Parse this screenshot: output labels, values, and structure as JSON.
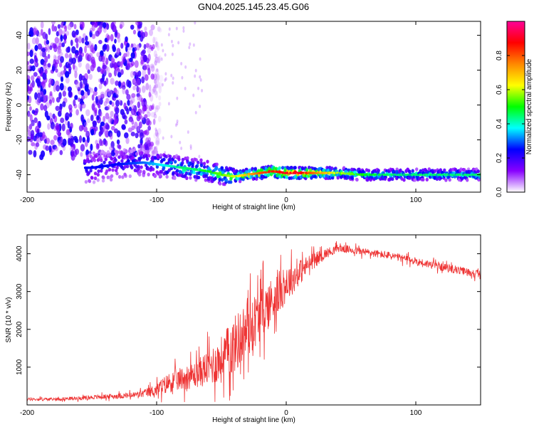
{
  "title": "GN04.2025.145.23.45.G06",
  "colors": {
    "snr_line": "#ee3333",
    "ridge_low": "#5500ee",
    "ridge_mid": "#22cc88",
    "ridge_high": "#ee2222",
    "background": "#ffffff"
  },
  "chart_data": [
    {
      "type": "heatmap",
      "xlabel": "Height of straight line (km)",
      "ylabel": "Frequency (Hz)",
      "xlim": [
        -200,
        150
      ],
      "ylim": [
        -50,
        48
      ],
      "xticks": [
        -200,
        -100,
        0,
        100
      ],
      "xtick_labels": [
        "-200",
        "-100",
        "0",
        "100"
      ],
      "yticks": [
        -40,
        -20,
        0,
        20,
        40
      ],
      "ytick_labels": [
        "-40",
        "-20",
        "0",
        "20",
        "40"
      ],
      "colorbar": {
        "label": "Normalized spectral amplitude",
        "range": [
          0,
          1
        ],
        "ticks": [
          0.0,
          0.2,
          0.4,
          0.6,
          0.8
        ],
        "tick_labels": [
          "0.0",
          "0.2",
          "0.4",
          "0.6",
          "0.8"
        ],
        "colormap": [
          "#ffffff",
          "#8800ff",
          "#0000ff",
          "#00ffff",
          "#00ff00",
          "#ffff00",
          "#ff8800",
          "#ff0000",
          "#ff0099"
        ]
      },
      "ridge": {
        "x": [
          -150,
          -130,
          -110,
          -100,
          -90,
          -80,
          -70,
          -60,
          -50,
          -40,
          -30,
          -20,
          -10,
          0,
          10,
          20,
          40,
          60,
          80,
          100,
          120,
          150
        ],
        "y": [
          -36,
          -34,
          -33,
          -34,
          -35,
          -36,
          -37,
          -38,
          -40,
          -41,
          -40,
          -39,
          -38,
          -39,
          -39,
          -39,
          -39,
          -40,
          -40,
          -40,
          -40,
          -40
        ],
        "amplitude": [
          0.25,
          0.25,
          0.3,
          0.35,
          0.4,
          0.45,
          0.45,
          0.5,
          0.55,
          0.6,
          0.7,
          0.8,
          0.85,
          0.9,
          0.9,
          0.8,
          0.6,
          0.5,
          0.45,
          0.45,
          0.45,
          0.45
        ]
      },
      "noise_region": {
        "x_range": [
          -200,
          -105
        ],
        "y_range": [
          -30,
          48
        ],
        "amplitude": 0.15
      }
    },
    {
      "type": "line",
      "xlabel": "Height of straight line (km)",
      "ylabel": "SNR (10 * v/v)",
      "xlim": [
        -200,
        150
      ],
      "ylim": [
        0,
        4500
      ],
      "xticks": [
        -200,
        -100,
        0,
        100
      ],
      "xtick_labels": [
        "-200",
        "-100",
        "0",
        "100"
      ],
      "yticks": [
        1000,
        2000,
        3000,
        4000
      ],
      "ytick_labels": [
        "1000",
        "2000",
        "3000",
        "4000"
      ],
      "series": [
        {
          "x": [
            -200,
            -180,
            -160,
            -140,
            -120,
            -110,
            -100,
            -90,
            -80,
            -70,
            -60,
            -50,
            -40,
            -30,
            -20,
            -10,
            0,
            10,
            20,
            30,
            40,
            60,
            80,
            100,
            120,
            150
          ],
          "y": [
            150,
            150,
            180,
            220,
            250,
            300,
            400,
            600,
            700,
            800,
            1000,
            1200,
            1600,
            2000,
            2400,
            2800,
            3200,
            3500,
            3800,
            4000,
            4150,
            4050,
            3950,
            3800,
            3650,
            3450
          ],
          "noise": [
            60,
            60,
            70,
            90,
            110,
            150,
            250,
            400,
            450,
            500,
            700,
            900,
            1100,
            1100,
            1000,
            900,
            700,
            500,
            300,
            200,
            150,
            150,
            150,
            150,
            150,
            150
          ]
        }
      ]
    }
  ]
}
